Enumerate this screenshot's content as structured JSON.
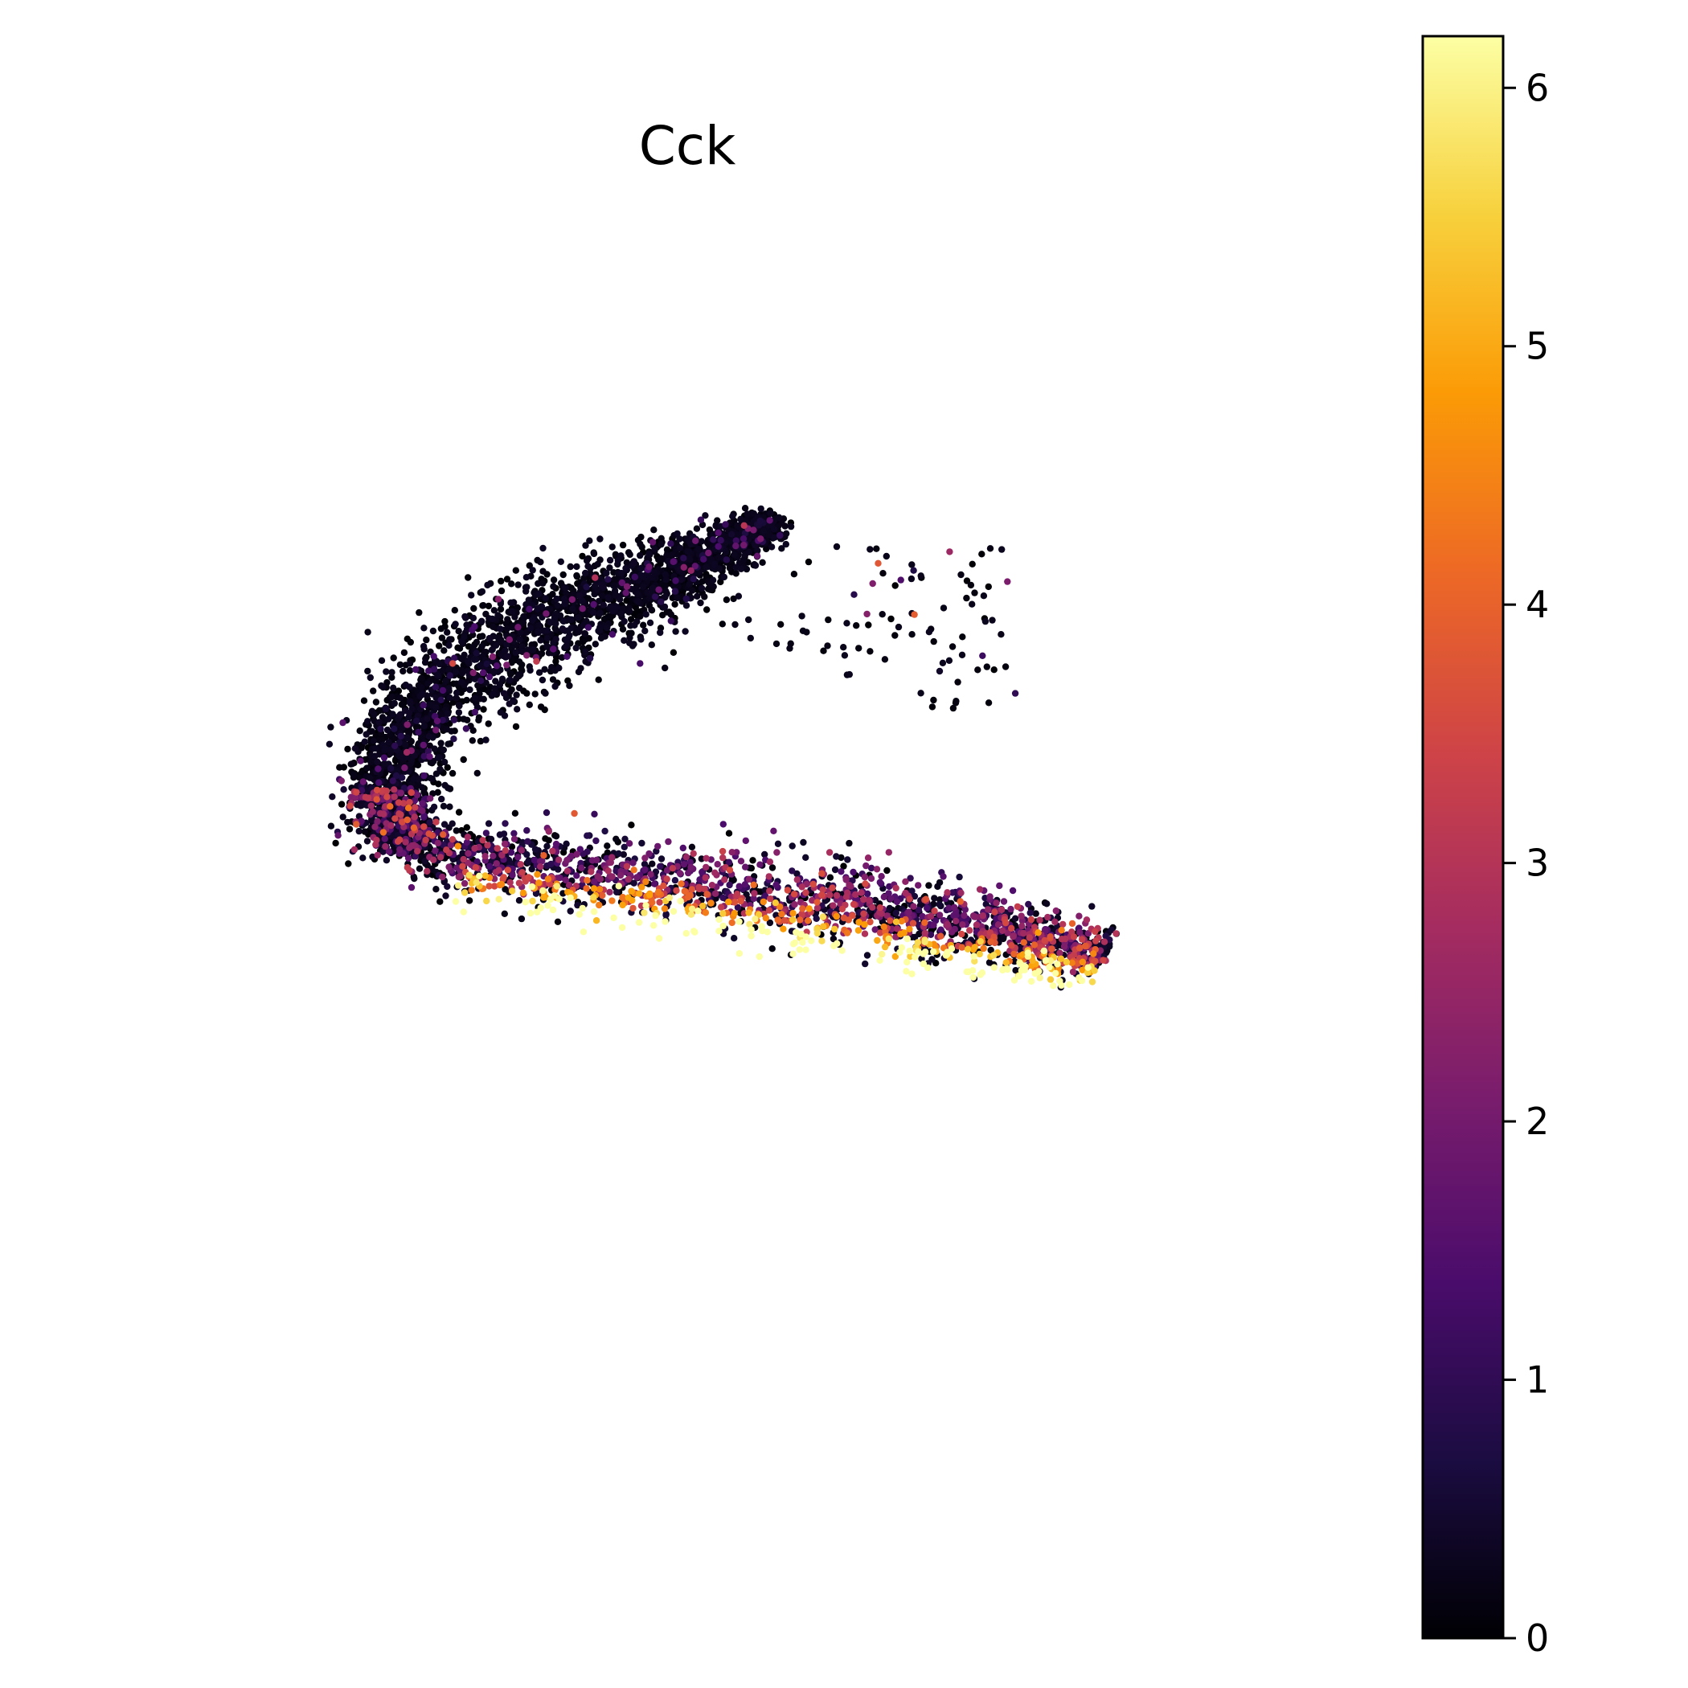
{
  "chart_data": {
    "type": "scatter",
    "title": "Cck",
    "xlabel": "",
    "ylabel": "",
    "axes_visible": false,
    "grid": false,
    "embedding": {
      "description_free": true,
      "xlim": [
        0,
        100
      ],
      "ylim": [
        0,
        100
      ],
      "ridge": [
        {
          "x": 52,
          "y": 8,
          "w": 2.0
        },
        {
          "x": 47,
          "y": 12,
          "w": 3.0
        },
        {
          "x": 41,
          "y": 16,
          "w": 4.5
        },
        {
          "x": 34,
          "y": 20,
          "w": 6.0
        },
        {
          "x": 27,
          "y": 24,
          "w": 6.5
        },
        {
          "x": 19,
          "y": 30,
          "w": 6.0
        },
        {
          "x": 14,
          "y": 38,
          "w": 5.5
        },
        {
          "x": 11,
          "y": 46,
          "w": 4.5
        },
        {
          "x": 10,
          "y": 52,
          "w": 3.5
        },
        {
          "x": 13,
          "y": 58,
          "w": 4.0
        },
        {
          "x": 25,
          "y": 61,
          "w": 5.5
        },
        {
          "x": 40,
          "y": 63,
          "w": 6.0
        },
        {
          "x": 55,
          "y": 66,
          "w": 6.0
        },
        {
          "x": 68,
          "y": 69,
          "w": 6.0
        },
        {
          "x": 79,
          "y": 72,
          "w": 5.0
        },
        {
          "x": 87,
          "y": 75,
          "w": 3.5
        }
      ]
    },
    "colorbar": {
      "colormap": "inferno",
      "min": 0,
      "max": 6.2,
      "ticks": [
        0,
        1,
        2,
        3,
        4,
        5,
        6
      ],
      "tick_labels": [
        "0",
        "1",
        "2",
        "3",
        "4",
        "5",
        "6"
      ],
      "stops": [
        "#000004",
        "#1b0c41",
        "#4a0c6b",
        "#781c6d",
        "#a52c60",
        "#cf4446",
        "#ed6925",
        "#fb9b06",
        "#f7d13d",
        "#fcffa4"
      ]
    }
  }
}
